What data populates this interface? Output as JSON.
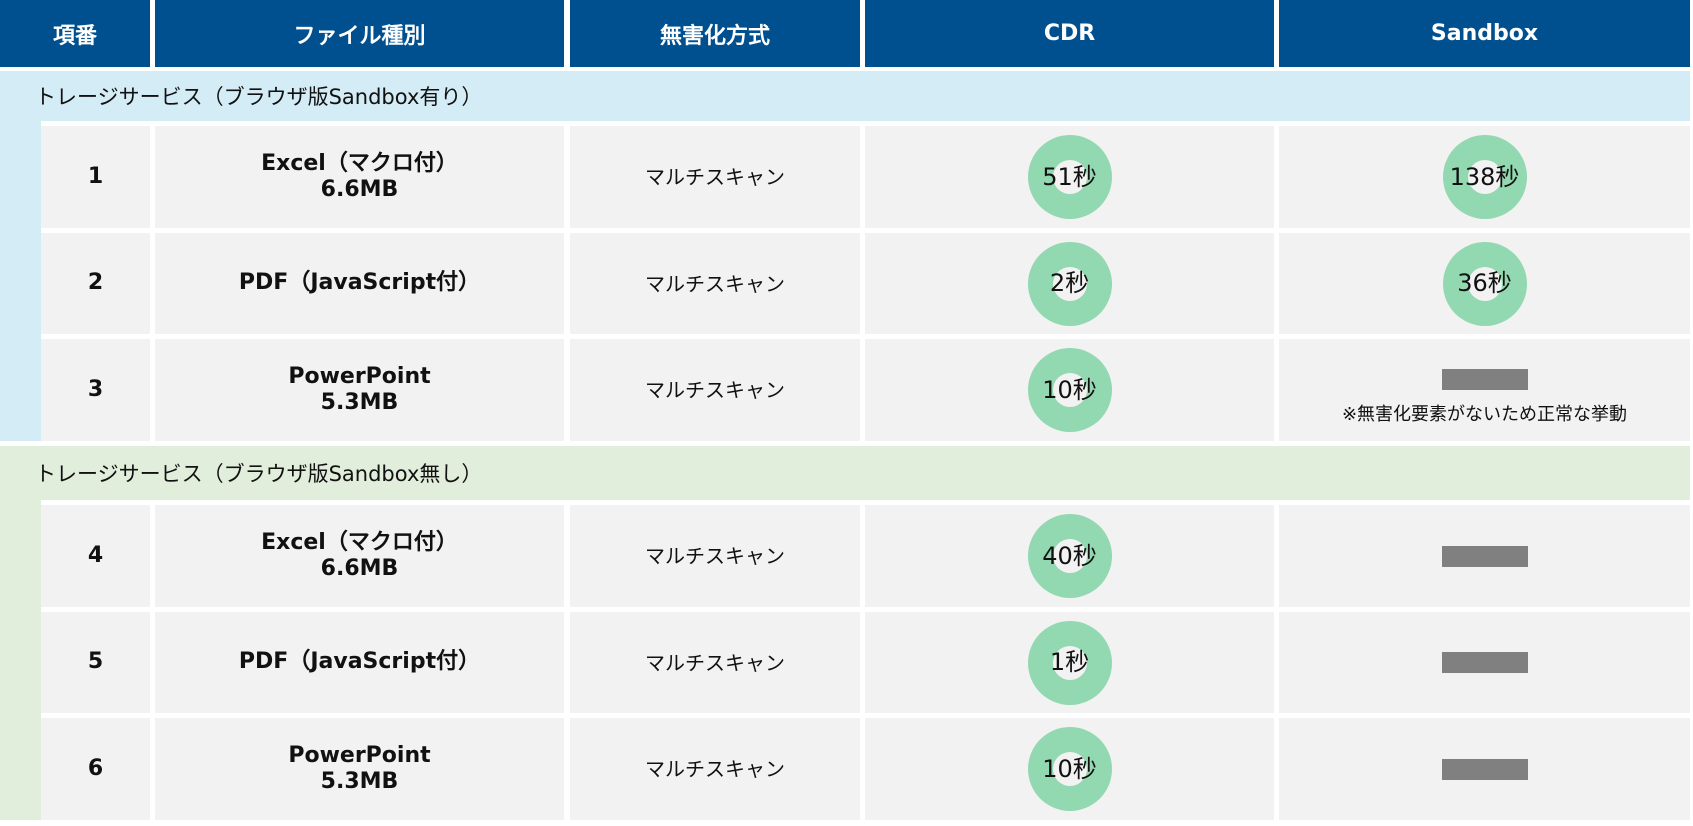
{
  "header": [
    "項番",
    "ファイル種別",
    "無害化方式",
    "CDR",
    "Sandbox"
  ],
  "colors": {
    "header": "#00508f",
    "section1": "#d4ecf6",
    "section2": "#e2eedc",
    "cell": "#f2f2f2",
    "donut": "#92d8b0",
    "dash": "#808080"
  },
  "sections": [
    {
      "title": "ストレージサービス（ブラウザ版Sandbox有り）",
      "rows": [
        {
          "no": "1",
          "type1": "Excel（マクロ付）",
          "type2": "6.6MB",
          "method": "マルチスキャン",
          "cdr": "51秒",
          "sandbox": "138秒"
        },
        {
          "no": "2",
          "type1": "PDF（JavaScript付）",
          "type2": "",
          "method": "マルチスキャン",
          "cdr": "2秒",
          "sandbox": "36秒"
        },
        {
          "no": "3",
          "type1": "PowerPoint",
          "type2": "5.3MB",
          "method": "マルチスキャン",
          "cdr": "10秒",
          "sandbox": null,
          "note": "※無害化要素がないため正常な挙動"
        }
      ]
    },
    {
      "title": "ストレージサービス（ブラウザ版Sandbox無し）",
      "rows": [
        {
          "no": "4",
          "type1": "Excel（マクロ付）",
          "type2": "6.6MB",
          "method": "マルチスキャン",
          "cdr": "40秒",
          "sandbox": null
        },
        {
          "no": "5",
          "type1": "PDF（JavaScript付）",
          "type2": "",
          "method": "マルチスキャン",
          "cdr": "1秒",
          "sandbox": null
        },
        {
          "no": "6",
          "type1": "PowerPoint",
          "type2": "5.3MB",
          "method": "マルチスキャン",
          "cdr": "10秒",
          "sandbox": null
        }
      ]
    }
  ]
}
